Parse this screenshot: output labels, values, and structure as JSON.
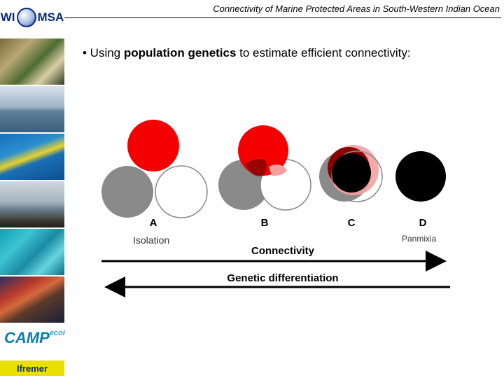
{
  "header": {
    "title": "Connectivity of Marine Protected Areas in South-Western Indian Ocean",
    "logo_text_left": "WI",
    "logo_text_right": "MSA"
  },
  "bullet": {
    "prefix": "• Using ",
    "bold": "population genetics",
    "suffix": " to estimate efficient connectivity:"
  },
  "sidebar": {
    "photos": [
      "reef-photo",
      "sea-boat-photo",
      "fish-school-photo",
      "shore-boats-photo",
      "coral-photo",
      "red-fish-photo"
    ],
    "logo_campecoi": "CAMP",
    "logo_campecoi_small": "ecoi",
    "logo_ifremer": "Ifremer"
  },
  "diagram": {
    "panels": [
      {
        "letter": "A"
      },
      {
        "letter": "B"
      },
      {
        "letter": "C"
      },
      {
        "letter": "D"
      }
    ],
    "left_label": "Isolation",
    "right_label": "Panmixia",
    "arrow_right_label": "Connectivity",
    "arrow_left_label": "Genetic differentiation",
    "colors": {
      "red": "#f50000",
      "grey": "#8a8a8a",
      "white": "#ffffff",
      "black": "#000000",
      "dark_red": "#8b0000"
    }
  }
}
